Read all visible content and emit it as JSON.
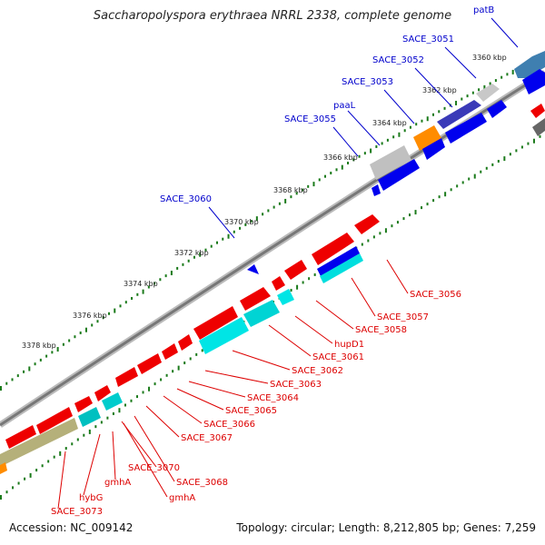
{
  "title": "Saccharopolyspora erythraea NRRL 2338, complete genome",
  "accession": "Accession: NC_009142",
  "topology": "Topology: circular; Length: 8,212,805 bp; Genes: 7,259",
  "colors": {
    "forward_cds": "#ff0000",
    "reverse_cds": "#0000ff",
    "rRNA_like": "#00e5e5",
    "label_forward": "#dd0000",
    "label_reverse": "#0000cc",
    "tick": "#1a7a1a",
    "backbone": "#888888"
  },
  "scale_labels": [
    "3360 kbp",
    "3362 kbp",
    "3364 kbp",
    "3366 kbp",
    "3368 kbp",
    "3370 kbp",
    "3372 kbp",
    "3374 kbp",
    "3376 kbp",
    "3378 kbp"
  ],
  "outer_gene_labels": [
    "patB",
    "SACE_3051",
    "SACE_3052",
    "SACE_3053",
    "paaL",
    "SACE_3055",
    "SACE_3060"
  ],
  "inner_gene_labels": [
    "SACE_3056",
    "SACE_3057",
    "SACE_3058",
    "hupD1",
    "SACE_3061",
    "SACE_3062",
    "SACE_3063",
    "SACE_3064",
    "SACE_3065",
    "SACE_3066",
    "SACE_3067",
    "SACE_3068",
    "SACE_3070",
    "gmhA",
    "gmhA",
    "hybG",
    "SACE_3073"
  ]
}
